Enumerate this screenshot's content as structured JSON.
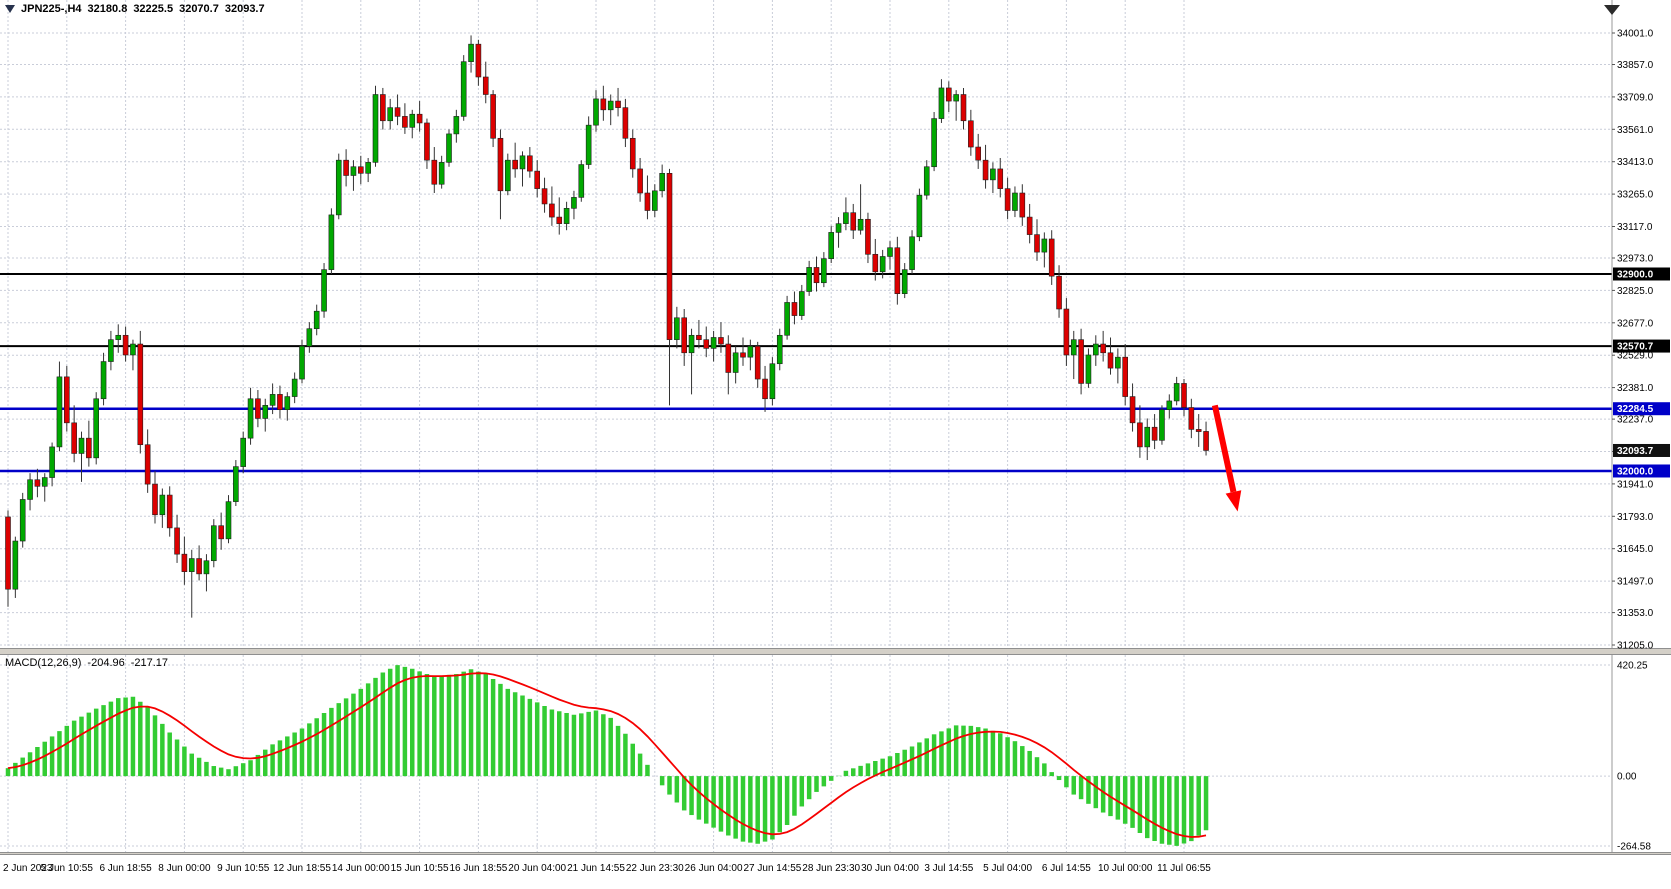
{
  "header": {
    "symbol_tf": "JPN225-,H4",
    "open": "32180.8",
    "high": "32225.5",
    "low": "32070.7",
    "close": "32093.7"
  },
  "macd_label": {
    "name": "MACD(12,26,9)",
    "value": "-204.96",
    "signal": "-217.17"
  },
  "colors": {
    "bull": "#00A800",
    "bear": "#DC0000",
    "wick": "#333333",
    "candle_border": "#1f1f1f",
    "grid": "#c9cdd9",
    "macd_hist": "#33CC33",
    "macd_signal": "#F50000",
    "axis_text": "#000000",
    "hline_black": "#000000",
    "hline_blue": "#0000C8",
    "tag_current_bg": "#101010",
    "arrow": "#FF0000"
  },
  "chart_data": {
    "type": "candlestick",
    "symbol": "JPN225-",
    "timeframe": "H4",
    "current_bar": {
      "open": 32180.8,
      "high": 32225.5,
      "low": 32070.7,
      "close": 32093.7
    },
    "bars_per_gridline": 8,
    "time_labels": [
      "2 Jun 2023",
      "5 Jun 10:55",
      "6 Jun 18:55",
      "8 Jun 00:00",
      "9 Jun 10:55",
      "12 Jun 18:55",
      "14 Jun 00:00",
      "15 Jun 10:55",
      "16 Jun 18:55",
      "20 Jun 04:00",
      "21 Jun 14:55",
      "22 Jun 23:30",
      "26 Jun 04:00",
      "27 Jun 14:55",
      "28 Jun 23:30",
      "30 Jun 04:00",
      "3 Jul 14:55",
      "5 Jul 04:00",
      "6 Jul 14:55",
      "10 Jul 00:00",
      "11 Jul 06:55"
    ],
    "price_gridlines": [
      {
        "v": 34001.0,
        "label": "34001.0"
      },
      {
        "v": 33857.0,
        "label": "33857.0"
      },
      {
        "v": 33709.0,
        "label": "33709.0"
      },
      {
        "v": 33561.0,
        "label": "33561.0"
      },
      {
        "v": 33413.0,
        "label": "33413.0"
      },
      {
        "v": 33265.0,
        "label": "33265.0"
      },
      {
        "v": 33117.0,
        "label": "33117.0"
      },
      {
        "v": 32973.0,
        "label": "32973.0"
      },
      {
        "v": 32825.0,
        "label": "32825.0"
      },
      {
        "v": 32677.0,
        "label": "32677.0"
      },
      {
        "v": 32529.0,
        "label": "32529.0"
      },
      {
        "v": 32381.0,
        "label": "32381.0"
      },
      {
        "v": 32237.0,
        "label": "32237.0"
      },
      {
        "v": 32089.0,
        "label": ""
      },
      {
        "v": 31941.0,
        "label": "31941.0"
      },
      {
        "v": 31793.0,
        "label": "31793.0"
      },
      {
        "v": 31645.0,
        "label": "31645.0"
      },
      {
        "v": 31497.0,
        "label": "31497.0"
      },
      {
        "v": 31353.0,
        "label": "31353.0"
      },
      {
        "v": 31205.0,
        "label": "31205.0"
      }
    ],
    "hlines": [
      {
        "v": 32900.0,
        "color": "#000000",
        "width": 2
      },
      {
        "v": 32570.7,
        "color": "#000000",
        "width": 2
      },
      {
        "v": 32284.5,
        "color": "#0000C8",
        "width": 2.5
      },
      {
        "v": 32000.0,
        "color": "#0000C8",
        "width": 2.5
      }
    ],
    "price_tags": [
      {
        "v": 32900.0,
        "text": "32900.0",
        "bg": "#000000"
      },
      {
        "v": 32570.7,
        "text": "32570.7",
        "bg": "#000000"
      },
      {
        "v": 32284.5,
        "text": "32284.5",
        "bg": "#0000C8"
      },
      {
        "v": 32093.7,
        "text": "32093.7",
        "bg": "#101010"
      },
      {
        "v": 32000.0,
        "text": "32000.0",
        "bg": "#0000C8"
      }
    ],
    "candles": [
      [
        31790,
        31820,
        31380,
        31460
      ],
      [
        31460,
        31700,
        31420,
        31680
      ],
      [
        31680,
        31900,
        31650,
        31870
      ],
      [
        31870,
        31990,
        31820,
        31960
      ],
      [
        31960,
        32010,
        31880,
        31930
      ],
      [
        31930,
        31990,
        31860,
        31970
      ],
      [
        31970,
        32130,
        31930,
        32110
      ],
      [
        32110,
        32500,
        32090,
        32430
      ],
      [
        32430,
        32480,
        32180,
        32220
      ],
      [
        32220,
        32300,
        32040,
        32080
      ],
      [
        32080,
        32180,
        31950,
        32150
      ],
      [
        32150,
        32230,
        32020,
        32060
      ],
      [
        32060,
        32360,
        32030,
        32330
      ],
      [
        32330,
        32540,
        32300,
        32500
      ],
      [
        32500,
        32640,
        32460,
        32600
      ],
      [
        32600,
        32670,
        32540,
        32620
      ],
      [
        32620,
        32660,
        32500,
        32530
      ],
      [
        32530,
        32600,
        32460,
        32580
      ],
      [
        32580,
        32640,
        32080,
        32120
      ],
      [
        32120,
        32190,
        31900,
        31940
      ],
      [
        31940,
        32000,
        31760,
        31800
      ],
      [
        31800,
        31920,
        31740,
        31890
      ],
      [
        31890,
        31930,
        31700,
        31740
      ],
      [
        31740,
        31800,
        31580,
        31620
      ],
      [
        31620,
        31700,
        31480,
        31540
      ],
      [
        31540,
        31640,
        31330,
        31600
      ],
      [
        31600,
        31660,
        31500,
        31530
      ],
      [
        31530,
        31620,
        31450,
        31590
      ],
      [
        31590,
        31780,
        31560,
        31750
      ],
      [
        31750,
        31810,
        31640,
        31690
      ],
      [
        31690,
        31890,
        31670,
        31860
      ],
      [
        31860,
        32050,
        31840,
        32020
      ],
      [
        32020,
        32180,
        31990,
        32150
      ],
      [
        32150,
        32380,
        32120,
        32330
      ],
      [
        32330,
        32370,
        32200,
        32240
      ],
      [
        32240,
        32330,
        32180,
        32300
      ],
      [
        32300,
        32400,
        32260,
        32350
      ],
      [
        32350,
        32390,
        32240,
        32280
      ],
      [
        32280,
        32360,
        32230,
        32340
      ],
      [
        32340,
        32450,
        32310,
        32420
      ],
      [
        32420,
        32600,
        32400,
        32570
      ],
      [
        32570,
        32680,
        32540,
        32650
      ],
      [
        32650,
        32760,
        32620,
        32730
      ],
      [
        32730,
        32950,
        32700,
        32920
      ],
      [
        32920,
        33200,
        32900,
        33170
      ],
      [
        33170,
        33450,
        33150,
        33420
      ],
      [
        33420,
        33470,
        33300,
        33350
      ],
      [
        33350,
        33420,
        33280,
        33390
      ],
      [
        33390,
        33440,
        33310,
        33360
      ],
      [
        33360,
        33430,
        33320,
        33410
      ],
      [
        33410,
        33760,
        33390,
        33720
      ],
      [
        33720,
        33750,
        33560,
        33600
      ],
      [
        33600,
        33700,
        33560,
        33660
      ],
      [
        33660,
        33720,
        33580,
        33620
      ],
      [
        33620,
        33680,
        33540,
        33570
      ],
      [
        33570,
        33650,
        33520,
        33630
      ],
      [
        33630,
        33690,
        33550,
        33590
      ],
      [
        33590,
        33610,
        33380,
        33420
      ],
      [
        33420,
        33480,
        33270,
        33310
      ],
      [
        33310,
        33440,
        33290,
        33410
      ],
      [
        33410,
        33560,
        33390,
        33540
      ],
      [
        33540,
        33650,
        33500,
        33620
      ],
      [
        33620,
        33900,
        33600,
        33870
      ],
      [
        33870,
        33990,
        33820,
        33950
      ],
      [
        33950,
        33970,
        33760,
        33800
      ],
      [
        33800,
        33870,
        33680,
        33720
      ],
      [
        33720,
        33740,
        33480,
        33520
      ],
      [
        33520,
        33560,
        33150,
        33280
      ],
      [
        33280,
        33450,
        33260,
        33420
      ],
      [
        33420,
        33500,
        33340,
        33380
      ],
      [
        33380,
        33460,
        33300,
        33440
      ],
      [
        33440,
        33480,
        33340,
        33370
      ],
      [
        33370,
        33420,
        33250,
        33290
      ],
      [
        33290,
        33340,
        33180,
        33220
      ],
      [
        33220,
        33300,
        33120,
        33160
      ],
      [
        33160,
        33250,
        33080,
        33130
      ],
      [
        33130,
        33230,
        33100,
        33200
      ],
      [
        33200,
        33280,
        33150,
        33250
      ],
      [
        33250,
        33420,
        33230,
        33400
      ],
      [
        33400,
        33620,
        33380,
        33580
      ],
      [
        33580,
        33740,
        33550,
        33700
      ],
      [
        33700,
        33760,
        33600,
        33650
      ],
      [
        33650,
        33720,
        33580,
        33690
      ],
      [
        33690,
        33750,
        33620,
        33660
      ],
      [
        33660,
        33700,
        33480,
        33520
      ],
      [
        33520,
        33560,
        33340,
        33380
      ],
      [
        33380,
        33430,
        33230,
        33270
      ],
      [
        33270,
        33350,
        33150,
        33190
      ],
      [
        33190,
        33310,
        33160,
        33280
      ],
      [
        33280,
        33400,
        33250,
        33360
      ],
      [
        33360,
        33380,
        32300,
        32600
      ],
      [
        32600,
        32750,
        32560,
        32700
      ],
      [
        32700,
        32740,
        32480,
        32540
      ],
      [
        32540,
        32650,
        32350,
        32620
      ],
      [
        32620,
        32690,
        32560,
        32600
      ],
      [
        32600,
        32660,
        32520,
        32560
      ],
      [
        32560,
        32640,
        32500,
        32610
      ],
      [
        32610,
        32680,
        32540,
        32580
      ],
      [
        32580,
        32620,
        32350,
        32450
      ],
      [
        32450,
        32570,
        32400,
        32540
      ],
      [
        32540,
        32610,
        32480,
        32520
      ],
      [
        32520,
        32600,
        32460,
        32570
      ],
      [
        32570,
        32590,
        32380,
        32420
      ],
      [
        32420,
        32480,
        32270,
        32330
      ],
      [
        32330,
        32520,
        32300,
        32490
      ],
      [
        32490,
        32650,
        32460,
        32620
      ],
      [
        32620,
        32800,
        32600,
        32770
      ],
      [
        32770,
        32820,
        32670,
        32710
      ],
      [
        32710,
        32850,
        32690,
        32820
      ],
      [
        32820,
        32960,
        32800,
        32930
      ],
      [
        32930,
        32980,
        32820,
        32860
      ],
      [
        32860,
        33000,
        32840,
        32970
      ],
      [
        32970,
        33120,
        32950,
        33090
      ],
      [
        33090,
        33160,
        33020,
        33130
      ],
      [
        33130,
        33250,
        33100,
        33180
      ],
      [
        33180,
        33220,
        33060,
        33100
      ],
      [
        33100,
        33310,
        33080,
        33150
      ],
      [
        33150,
        33180,
        32950,
        32990
      ],
      [
        32990,
        33060,
        32870,
        32910
      ],
      [
        32910,
        33010,
        32880,
        32980
      ],
      [
        32980,
        33050,
        32920,
        33020
      ],
      [
        33020,
        33070,
        32760,
        32810
      ],
      [
        32810,
        32950,
        32790,
        32920
      ],
      [
        32920,
        33100,
        32900,
        33070
      ],
      [
        33070,
        33290,
        33050,
        33260
      ],
      [
        33260,
        33420,
        33240,
        33390
      ],
      [
        33390,
        33640,
        33370,
        33610
      ],
      [
        33610,
        33790,
        33590,
        33750
      ],
      [
        33750,
        33780,
        33640,
        33690
      ],
      [
        33690,
        33740,
        33600,
        33720
      ],
      [
        33720,
        33750,
        33560,
        33600
      ],
      [
        33600,
        33650,
        33440,
        33480
      ],
      [
        33480,
        33540,
        33380,
        33420
      ],
      [
        33420,
        33490,
        33290,
        33330
      ],
      [
        33330,
        33410,
        33270,
        33380
      ],
      [
        33380,
        33430,
        33250,
        33290
      ],
      [
        33290,
        33340,
        33150,
        33190
      ],
      [
        33190,
        33300,
        33160,
        33270
      ],
      [
        33270,
        33310,
        33120,
        33160
      ],
      [
        33160,
        33220,
        33040,
        33080
      ],
      [
        33080,
        33150,
        32960,
        33000
      ],
      [
        33000,
        33090,
        32930,
        33060
      ],
      [
        33060,
        33100,
        32850,
        32890
      ],
      [
        32890,
        32940,
        32700,
        32740
      ],
      [
        32740,
        32790,
        32480,
        32530
      ],
      [
        32530,
        32640,
        32420,
        32600
      ],
      [
        32600,
        32650,
        32350,
        32400
      ],
      [
        32400,
        32560,
        32380,
        32530
      ],
      [
        32530,
        32620,
        32480,
        32580
      ],
      [
        32580,
        32640,
        32500,
        32540
      ],
      [
        32540,
        32610,
        32440,
        32470
      ],
      [
        32470,
        32560,
        32400,
        32520
      ],
      [
        32520,
        32580,
        32300,
        32340
      ],
      [
        32340,
        32400,
        32180,
        32220
      ],
      [
        32220,
        32300,
        32060,
        32110
      ],
      [
        32110,
        32240,
        32050,
        32200
      ],
      [
        32200,
        32260,
        32100,
        32140
      ],
      [
        32140,
        32300,
        32120,
        32280
      ],
      [
        32280,
        32350,
        32240,
        32320
      ],
      [
        32320,
        32430,
        32300,
        32400
      ],
      [
        32400,
        32420,
        32250,
        32290
      ],
      [
        32290,
        32330,
        32150,
        32190
      ],
      [
        32190,
        32260,
        32110,
        32180
      ],
      [
        32180.8,
        32225.5,
        32070.7,
        32093.7
      ]
    ],
    "macd": {
      "label": "MACD(12,26,9)",
      "value": -204.96,
      "signal_value": -217.17,
      "signal_period": 9,
      "axis_values": [
        420.25,
        0,
        -264.58
      ],
      "axis_labels": [
        "420.25",
        "0.00",
        "-264.58"
      ],
      "histogram_keypoints": [
        [
          0,
          30
        ],
        [
          3,
          90
        ],
        [
          6,
          150
        ],
        [
          9,
          210
        ],
        [
          12,
          255
        ],
        [
          15,
          295
        ],
        [
          17,
          300
        ],
        [
          19,
          262
        ],
        [
          22,
          165
        ],
        [
          25,
          85
        ],
        [
          28,
          38
        ],
        [
          30,
          26
        ],
        [
          33,
          60
        ],
        [
          36,
          120
        ],
        [
          40,
          180
        ],
        [
          44,
          258
        ],
        [
          48,
          330
        ],
        [
          51,
          392
        ],
        [
          53,
          420
        ],
        [
          55,
          406
        ],
        [
          58,
          376
        ],
        [
          61,
          386
        ],
        [
          63,
          404
        ],
        [
          65,
          386
        ],
        [
          68,
          330
        ],
        [
          71,
          292
        ],
        [
          74,
          252
        ],
        [
          77,
          232
        ],
        [
          80,
          248
        ],
        [
          82,
          220
        ],
        [
          84,
          160
        ],
        [
          86,
          85
        ],
        [
          88,
          0
        ],
        [
          90,
          -70
        ],
        [
          92,
          -130
        ],
        [
          94,
          -165
        ],
        [
          96,
          -195
        ],
        [
          98,
          -225
        ],
        [
          100,
          -248
        ],
        [
          102,
          -256
        ],
        [
          104,
          -240
        ],
        [
          106,
          -185
        ],
        [
          108,
          -115
        ],
        [
          110,
          -60
        ],
        [
          112,
          -18
        ],
        [
          114,
          20
        ],
        [
          117,
          48
        ],
        [
          120,
          75
        ],
        [
          123,
          112
        ],
        [
          126,
          158
        ],
        [
          129,
          192
        ],
        [
          131,
          190
        ],
        [
          133,
          180
        ],
        [
          135,
          162
        ],
        [
          137,
          132
        ],
        [
          139,
          95
        ],
        [
          141,
          48
        ],
        [
          142,
          15
        ],
        [
          143,
          -15
        ],
        [
          145,
          -70
        ],
        [
          147,
          -105
        ],
        [
          149,
          -138
        ],
        [
          151,
          -165
        ],
        [
          153,
          -196
        ],
        [
          155,
          -235
        ],
        [
          157,
          -256
        ],
        [
          159,
          -264
        ],
        [
          161,
          -246
        ],
        [
          163,
          -205
        ]
      ]
    },
    "annotation_arrow": {
      "color": "#FF0000",
      "width": 6,
      "from": {
        "bar": 164.2,
        "price": 32300
      },
      "to": {
        "bar": 167.3,
        "price": 31815
      }
    }
  }
}
